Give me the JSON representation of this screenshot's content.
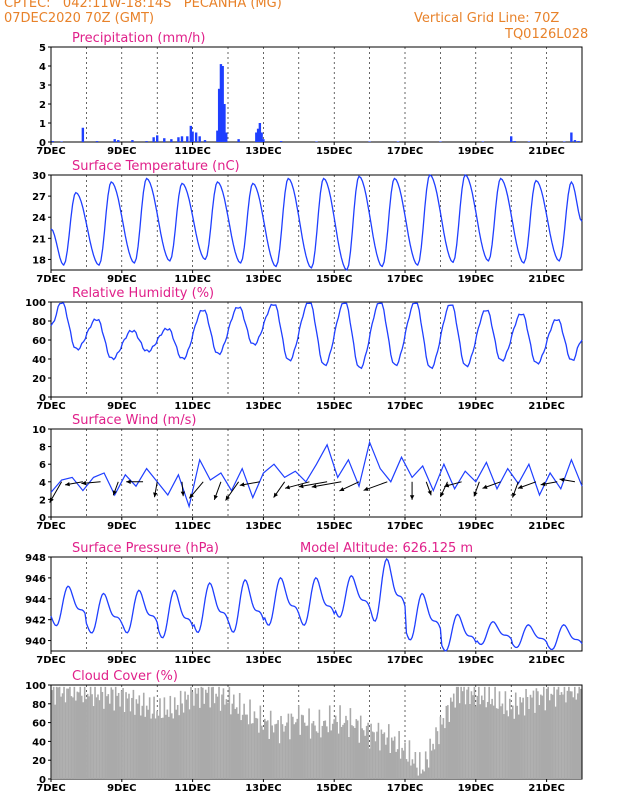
{
  "header": {
    "line1": "CPTEC:   042:11W-18:14S   PECANHA (MG)",
    "line2": "07DEC2020 70Z (GMT)",
    "grid_label": "Vertical Grid Line: 70Z",
    "code": "TQ0126L028"
  },
  "x_axis": {
    "start_day": 7,
    "end_day": 22,
    "tick_labels": [
      "7DEC",
      "9DEC",
      "11DEC",
      "13DEC",
      "15DEC",
      "17DEC",
      "19DEC",
      "21DEC"
    ],
    "tick_days": [
      7,
      9,
      11,
      13,
      15,
      17,
      19,
      21
    ]
  },
  "model_altitude_label": "Model Altitude: 626.125 m",
  "chart_data": [
    {
      "type": "bar",
      "title": "Precipitation (mm/h)",
      "ylim": [
        0,
        5
      ],
      "yticks": [
        0,
        1,
        2,
        3,
        4,
        5
      ],
      "color": "#1f3fff",
      "bars": [
        [
          7.05,
          0.05
        ],
        [
          7.3,
          0.03
        ],
        [
          7.9,
          0.75
        ],
        [
          8.3,
          0.05
        ],
        [
          8.8,
          0.15
        ],
        [
          8.9,
          0.1
        ],
        [
          9.3,
          0.1
        ],
        [
          9.7,
          0.05
        ],
        [
          9.9,
          0.25
        ],
        [
          10.0,
          0.35
        ],
        [
          10.2,
          0.2
        ],
        [
          10.4,
          0.15
        ],
        [
          10.6,
          0.25
        ],
        [
          10.7,
          0.3
        ],
        [
          10.85,
          0.3
        ],
        [
          10.95,
          0.85
        ],
        [
          11.0,
          0.55
        ],
        [
          11.1,
          0.5
        ],
        [
          11.2,
          0.3
        ],
        [
          11.35,
          0.1
        ],
        [
          11.7,
          0.6
        ],
        [
          11.75,
          2.8
        ],
        [
          11.8,
          4.1
        ],
        [
          11.85,
          4.0
        ],
        [
          11.9,
          2.0
        ],
        [
          11.95,
          0.5
        ],
        [
          12.3,
          0.15
        ],
        [
          12.8,
          0.5
        ],
        [
          12.85,
          0.7
        ],
        [
          12.9,
          1.0
        ],
        [
          12.95,
          0.5
        ],
        [
          13.0,
          0.15
        ],
        [
          13.5,
          0.05
        ],
        [
          14.5,
          0.03
        ],
        [
          16.0,
          0.03
        ],
        [
          16.8,
          0.03
        ],
        [
          18.0,
          0.03
        ],
        [
          19.2,
          0.03
        ],
        [
          20.0,
          0.3
        ],
        [
          20.1,
          0.05
        ],
        [
          20.5,
          0.03
        ],
        [
          21.5,
          0.03
        ],
        [
          21.7,
          0.5
        ],
        [
          21.8,
          0.1
        ],
        [
          21.9,
          0.05
        ]
      ]
    },
    {
      "type": "line",
      "title": "Surface Temperature (nC)",
      "ylim": [
        16.5,
        30
      ],
      "yticks": [
        18,
        21,
        24,
        27,
        30
      ],
      "color": "#1f3fff",
      "daily_min": [
        17.2,
        17.2,
        17.5,
        17.8,
        18.0,
        17.5,
        17.0,
        16.8,
        16.5,
        17.0,
        17.2,
        17.6,
        17.8,
        17.5,
        17.8
      ],
      "daily_max": [
        27.5,
        29.0,
        29.5,
        28.8,
        29.0,
        28.8,
        29.5,
        29.5,
        29.8,
        29.5,
        30.0,
        30.0,
        29.5,
        29.2,
        29.0
      ]
    },
    {
      "type": "line",
      "title": "Relative Humidity (%)",
      "ylim": [
        0,
        100
      ],
      "yticks": [
        0,
        20,
        40,
        60,
        80,
        100
      ],
      "color": "#1f3fff",
      "daily_max": [
        100,
        82,
        70,
        72,
        92,
        95,
        98,
        100,
        100,
        100,
        100,
        98,
        92,
        88,
        82
      ],
      "daily_min": [
        50,
        40,
        48,
        40,
        45,
        55,
        38,
        33,
        30,
        33,
        30,
        32,
        38,
        35,
        38
      ]
    },
    {
      "type": "line",
      "title": "Surface Wind (m/s)",
      "ylim": [
        0,
        10
      ],
      "yticks": [
        0,
        2,
        4,
        6,
        8,
        10
      ],
      "color": "#1f3fff",
      "speed": [
        [
          7.0,
          2.8
        ],
        [
          7.3,
          4.2
        ],
        [
          7.6,
          4.5
        ],
        [
          7.9,
          3.0
        ],
        [
          8.2,
          4.5
        ],
        [
          8.5,
          5.0
        ],
        [
          8.8,
          2.5
        ],
        [
          9.1,
          4.8
        ],
        [
          9.4,
          3.5
        ],
        [
          9.7,
          5.5
        ],
        [
          10.0,
          4.0
        ],
        [
          10.3,
          2.5
        ],
        [
          10.6,
          4.8
        ],
        [
          10.9,
          1.2
        ],
        [
          11.2,
          6.5
        ],
        [
          11.5,
          4.2
        ],
        [
          11.8,
          5.0
        ],
        [
          12.1,
          3.0
        ],
        [
          12.4,
          5.5
        ],
        [
          12.7,
          2.2
        ],
        [
          13.0,
          5.0
        ],
        [
          13.3,
          6.0
        ],
        [
          13.6,
          4.5
        ],
        [
          13.9,
          5.2
        ],
        [
          14.2,
          4.0
        ],
        [
          14.5,
          6.0
        ],
        [
          14.8,
          8.2
        ],
        [
          15.1,
          4.5
        ],
        [
          15.4,
          6.5
        ],
        [
          15.7,
          3.5
        ],
        [
          16.0,
          8.5
        ],
        [
          16.3,
          5.5
        ],
        [
          16.6,
          4.0
        ],
        [
          16.9,
          6.8
        ],
        [
          17.2,
          4.5
        ],
        [
          17.5,
          5.8
        ],
        [
          17.8,
          3.0
        ],
        [
          18.1,
          6.0
        ],
        [
          18.4,
          3.2
        ],
        [
          18.7,
          5.2
        ],
        [
          19.0,
          4.0
        ],
        [
          19.3,
          6.2
        ],
        [
          19.6,
          3.2
        ],
        [
          19.9,
          5.5
        ],
        [
          20.2,
          3.8
        ],
        [
          20.5,
          6.0
        ],
        [
          20.8,
          2.5
        ],
        [
          21.1,
          5.0
        ],
        [
          21.4,
          3.2
        ],
        [
          21.7,
          6.5
        ],
        [
          22.0,
          3.5
        ]
      ],
      "arrows": [
        [
          7.3,
          240,
          2.0
        ],
        [
          7.9,
          190,
          1.5
        ],
        [
          8.4,
          185,
          1.6
        ],
        [
          8.9,
          250,
          1.2
        ],
        [
          9.6,
          180,
          1.4
        ],
        [
          10.0,
          260,
          1.3
        ],
        [
          10.7,
          275,
          1.2
        ],
        [
          11.3,
          230,
          1.8
        ],
        [
          11.8,
          250,
          1.6
        ],
        [
          12.3,
          235,
          1.9
        ],
        [
          12.9,
          190,
          1.7
        ],
        [
          13.6,
          235,
          1.6
        ],
        [
          14.3,
          195,
          2.1
        ],
        [
          14.8,
          190,
          2.4
        ],
        [
          15.2,
          190,
          2.5
        ],
        [
          15.7,
          205,
          1.8
        ],
        [
          16.5,
          200,
          2.1
        ],
        [
          17.2,
          270,
          1.5
        ],
        [
          17.6,
          290,
          1.2
        ],
        [
          18.2,
          245,
          1.4
        ],
        [
          18.6,
          195,
          1.5
        ],
        [
          19.1,
          250,
          1.3
        ],
        [
          19.7,
          200,
          1.6
        ],
        [
          20.2,
          250,
          1.4
        ],
        [
          20.7,
          200,
          1.6
        ],
        [
          21.3,
          190,
          1.4
        ],
        [
          21.8,
          170,
          1.3
        ]
      ]
    },
    {
      "type": "line",
      "title": "Surface Pressure (hPa)",
      "ylim": [
        939,
        948
      ],
      "yticks": [
        940,
        942,
        944,
        946,
        948
      ],
      "color": "#1f3fff",
      "daily_max": [
        945.2,
        944.5,
        944.8,
        944.8,
        945.5,
        945.8,
        946.0,
        946.0,
        946.2,
        947.8,
        944.5,
        942.5,
        941.8,
        941.5,
        941.5
      ],
      "daily_min": [
        941.2,
        940.5,
        940.5,
        940.0,
        940.5,
        940.5,
        941.2,
        941.2,
        942.0,
        941.5,
        939.8,
        938.8,
        939.5,
        939.2,
        939.0
      ]
    },
    {
      "type": "bar",
      "title": "Cloud Cover (%)",
      "ylim": [
        0,
        100
      ],
      "yticks": [
        0,
        20,
        40,
        60,
        80,
        100
      ],
      "color": "#aaaaaa",
      "profile": [
        [
          7.0,
          95
        ],
        [
          7.5,
          95
        ],
        [
          8.0,
          92
        ],
        [
          8.5,
          90
        ],
        [
          9.0,
          88
        ],
        [
          9.5,
          80
        ],
        [
          10.0,
          72
        ],
        [
          10.5,
          75
        ],
        [
          11.0,
          90
        ],
        [
          11.5,
          92
        ],
        [
          12.0,
          85
        ],
        [
          12.5,
          70
        ],
        [
          13.0,
          60
        ],
        [
          13.5,
          55
        ],
        [
          14.0,
          65
        ],
        [
          14.5,
          55
        ],
        [
          15.0,
          62
        ],
        [
          15.5,
          60
        ],
        [
          16.0,
          50
        ],
        [
          16.5,
          45
        ],
        [
          17.0,
          30
        ],
        [
          17.5,
          10
        ],
        [
          18.0,
          55
        ],
        [
          18.5,
          95
        ],
        [
          19.0,
          90
        ],
        [
          19.5,
          85
        ],
        [
          20.0,
          75
        ],
        [
          20.5,
          85
        ],
        [
          21.0,
          90
        ],
        [
          21.5,
          95
        ],
        [
          22.0,
          95
        ]
      ]
    }
  ]
}
